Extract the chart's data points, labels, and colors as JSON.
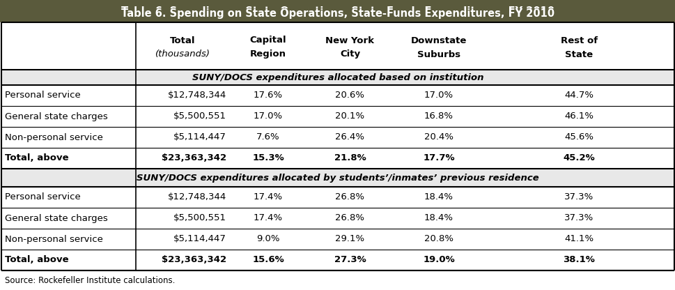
{
  "title": "Table 6. Spending on State Operations, State-Funds Expenditures, FY 2010",
  "title_bg": "#5a5a3c",
  "title_color": "#ffffff",
  "col_headers": [
    "Total\n(thousands)",
    "Capital\nRegion",
    "New York\nCity",
    "Downstate\nSuburbs",
    "Rest of\nState"
  ],
  "section1_label": "SUNY/DOCS expenditures allocated based on institution",
  "section2_label": "SUNY/DOCS expenditures allocated by students’/inmates’ previous residence",
  "rows_section1": [
    [
      "Personal service",
      "$12,748,344",
      "17.6%",
      "20.6%",
      "17.0%",
      "44.7%"
    ],
    [
      "General state charges",
      "$5,500,551",
      "17.0%",
      "20.1%",
      "16.8%",
      "46.1%"
    ],
    [
      "Non-personal service",
      "$5,114,447",
      "7.6%",
      "26.4%",
      "20.4%",
      "45.6%"
    ],
    [
      "Total, above",
      "$23,363,342",
      "15.3%",
      "21.8%",
      "17.7%",
      "45.2%"
    ]
  ],
  "rows_section2": [
    [
      "Personal service",
      "$12,748,344",
      "17.4%",
      "26.8%",
      "18.4%",
      "37.3%"
    ],
    [
      "General state charges",
      "$5,500,551",
      "17.4%",
      "26.8%",
      "18.4%",
      "37.3%"
    ],
    [
      "Non-personal service",
      "$5,114,447",
      "9.0%",
      "29.1%",
      "20.8%",
      "41.1%"
    ],
    [
      "Total, above",
      "$23,363,342",
      "15.6%",
      "27.3%",
      "19.0%",
      "38.1%"
    ]
  ],
  "source": "Source: Rockefeller Institute calculations.",
  "bg_color": "#ffffff",
  "table_border_color": "#000000",
  "header_bg": "#ffffff",
  "section_bg": "#e8e8e8",
  "total_row_bold": true
}
